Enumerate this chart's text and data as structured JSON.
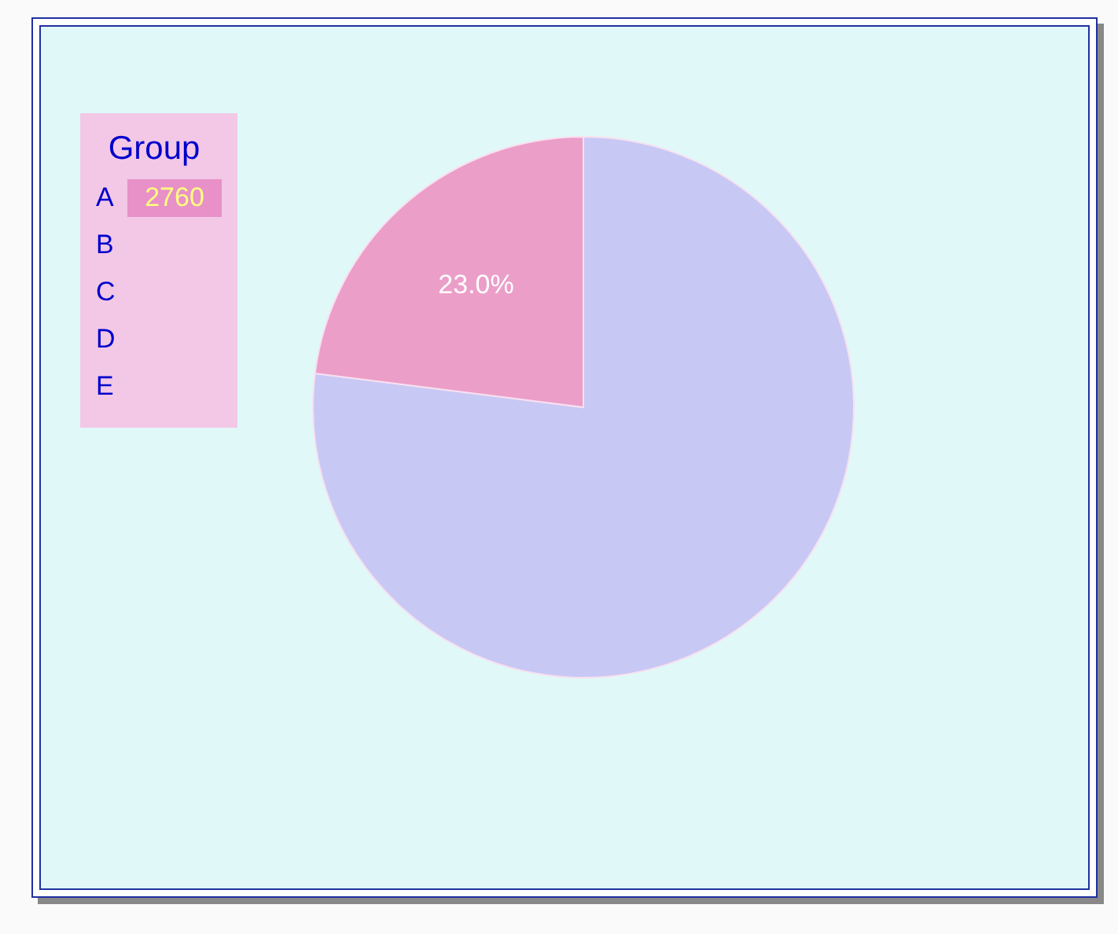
{
  "chart_data": {
    "type": "pie",
    "legend_title": "Group",
    "legend": "top left",
    "categories": [
      "A",
      null
    ],
    "values": [
      23.0,
      77.0
    ],
    "colors": [
      "#eb9ec8",
      "#c8c8f5"
    ],
    "value_labels": [
      "23.0%",
      null
    ],
    "annotations": [
      "2760",
      "B",
      "C",
      "D",
      "E"
    ]
  }
}
